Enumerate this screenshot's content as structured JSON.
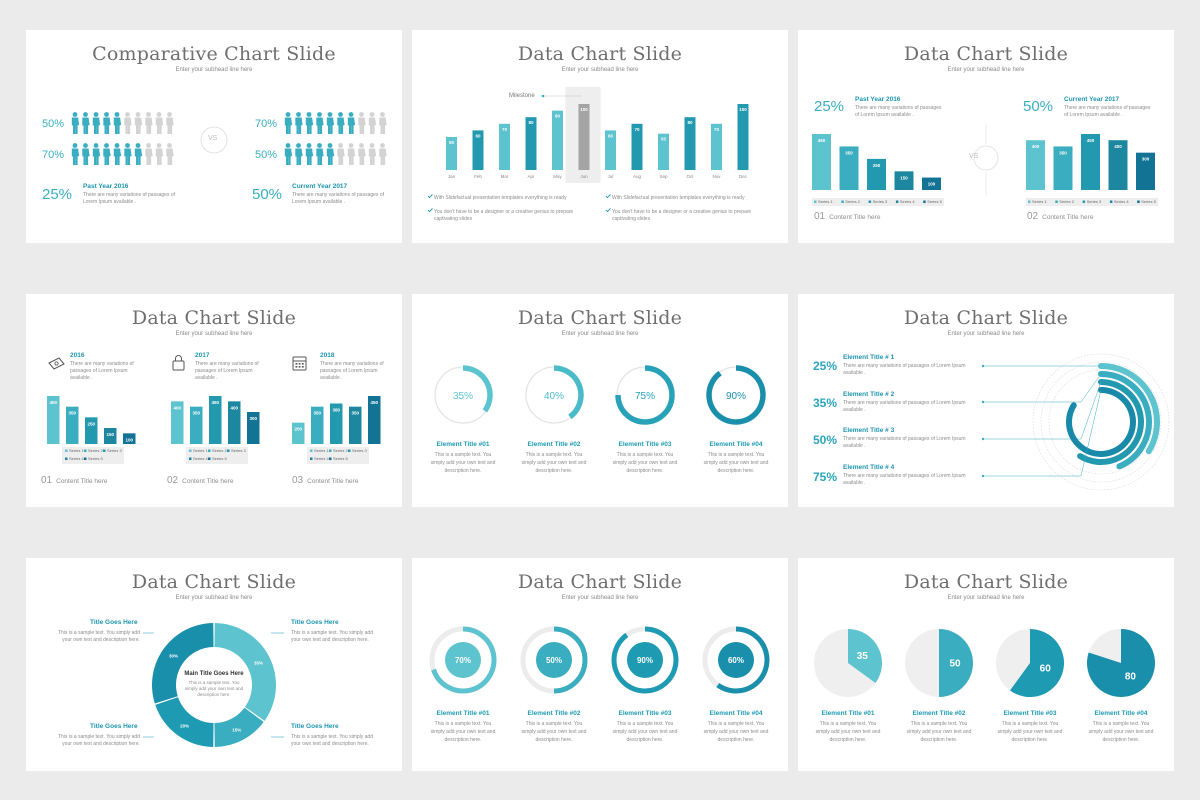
{
  "subhead": "Enter your subhead line here",
  "lorem2": "There are many variations of passages of Lorem Ipsum available .",
  "sample": "This is a sample text. You simply add your own text and description here.",
  "s1": {
    "title": "Comparative Chart Slide",
    "left": {
      "rows": [
        "50%",
        "70%"
      ],
      "big": "25%",
      "year": "Past Year 2016"
    },
    "right": {
      "rows": [
        "70%",
        "50%"
      ],
      "big": "50%",
      "year": "Current Year 2017"
    },
    "vs": "VS"
  },
  "s2": {
    "title": "Data Chart Slide",
    "milestone": "Milestone",
    "bullets": [
      "With Slidefactual presentation templates everything is ready",
      "You don't have to be a designer or a creative genius to prepare captivating slides",
      "With Slidefactual presentation templates everything is ready",
      "You don't have to be a designer or a creative genius to prepare captivating slides"
    ]
  },
  "s3": {
    "title": "Data Chart Slide",
    "left": {
      "big": "25%",
      "year": "Past Year 2016",
      "num": "01",
      "cap": "Content Title here"
    },
    "right": {
      "big": "50%",
      "year": "Current Year 2017",
      "num": "02",
      "cap": "Content Title here"
    },
    "vs": "VS"
  },
  "s4": {
    "title": "Data Chart Slide",
    "blocks": [
      {
        "year": "2016",
        "num": "01",
        "cap": "Content Title here"
      },
      {
        "year": "2017",
        "num": "02",
        "cap": "Content Title here"
      },
      {
        "year": "2018",
        "num": "03",
        "cap": "Content Title here"
      }
    ]
  },
  "s5": {
    "title": "Data Chart Slide",
    "elements": [
      "Element Title #01",
      "Element Title #02",
      "Element Title #03",
      "Element Title #04"
    ]
  },
  "s6": {
    "title": "Data Chart Slide",
    "items": [
      {
        "pct": "25%",
        "title": "Element Title # 1"
      },
      {
        "pct": "35%",
        "title": "Element Title # 2"
      },
      {
        "pct": "50%",
        "title": "Element Title # 3"
      },
      {
        "pct": "75%",
        "title": "Element Title # 4"
      }
    ]
  },
  "s7": {
    "title": "Data Chart Slide",
    "side_title": "Title Goes Here",
    "center_title": "Main Title Goes Here",
    "center_desc": "This is a sample text. You simply add your own text and description here."
  },
  "s8": {
    "title": "Data Chart Slide",
    "elements": [
      "Element Title #01",
      "Element Title #02",
      "Element Title #03",
      "Element Title #04"
    ]
  },
  "s9": {
    "title": "Data Chart Slide",
    "elements": [
      "Element Title #01",
      "Element Title #02",
      "Element Title #03",
      "Element Title #04"
    ]
  },
  "chart_data": [
    {
      "id": "people-left",
      "type": "pictogram",
      "total": 10,
      "rows": [
        5,
        7
      ],
      "labels": [
        "50%",
        "70%"
      ]
    },
    {
      "id": "people-right",
      "type": "pictogram",
      "total": 10,
      "rows": [
        7,
        5
      ],
      "labels": [
        "70%",
        "50%"
      ]
    },
    {
      "id": "monthly",
      "type": "bar",
      "categories": [
        "Jan",
        "Feb",
        "Mar",
        "Apr",
        "May",
        "Jun",
        "Jul",
        "Aug",
        "Sep",
        "Oct",
        "Nov",
        "Dec"
      ],
      "values": [
        50,
        60,
        70,
        80,
        90,
        100,
        60,
        70,
        55,
        80,
        70,
        100
      ],
      "highlight": "Jun",
      "ylim": [
        0,
        100
      ]
    },
    {
      "id": "compare-2016",
      "type": "bar",
      "categories": [
        "Series 1",
        "Series 2",
        "Series 3",
        "Series 4",
        "Series 5"
      ],
      "values": [
        450,
        350,
        250,
        150,
        100
      ],
      "ylim": [
        0,
        450
      ]
    },
    {
      "id": "compare-2017",
      "type": "bar",
      "categories": [
        "Series 1",
        "Series 2",
        "Series 3",
        "Series 4",
        "Series 5"
      ],
      "values": [
        400,
        350,
        450,
        400,
        300
      ],
      "ylim": [
        0,
        450
      ]
    },
    {
      "id": "year-2016",
      "type": "bar",
      "categories": [
        "Series 1",
        "Series 2",
        "Series 3",
        "Series 4",
        "Series 5"
      ],
      "values": [
        450,
        350,
        250,
        150,
        100
      ],
      "ylim": [
        0,
        450
      ]
    },
    {
      "id": "year-2017",
      "type": "bar",
      "categories": [
        "Series 1",
        "Series 2",
        "Series 3",
        "Series 4",
        "Series 5"
      ],
      "values": [
        400,
        350,
        450,
        400,
        300
      ],
      "ylim": [
        0,
        450
      ]
    },
    {
      "id": "year-2018",
      "type": "bar",
      "categories": [
        "Series 1",
        "Series 2",
        "Series 3",
        "Series 4",
        "Series 5"
      ],
      "values": [
        200,
        350,
        380,
        350,
        450
      ],
      "ylim": [
        0,
        450
      ]
    },
    {
      "id": "rings",
      "type": "donut",
      "values": [
        35,
        40,
        75,
        90
      ],
      "labels": [
        "35%",
        "40%",
        "75%",
        "90%"
      ]
    },
    {
      "id": "radial",
      "type": "radial-bar",
      "values": [
        25,
        35,
        50,
        75
      ]
    },
    {
      "id": "donut",
      "type": "pie",
      "values": [
        30,
        35,
        15,
        20
      ],
      "labels": [
        "30%",
        "35%",
        "15%",
        "20%"
      ]
    },
    {
      "id": "circles",
      "type": "donut",
      "values": [
        70,
        50,
        90,
        60
      ],
      "labels": [
        "70%",
        "50%",
        "90%",
        "60%"
      ]
    },
    {
      "id": "pies",
      "type": "pie",
      "values": [
        35,
        50,
        60,
        80
      ],
      "labels": [
        "35",
        "50",
        "60",
        "80"
      ]
    }
  ]
}
